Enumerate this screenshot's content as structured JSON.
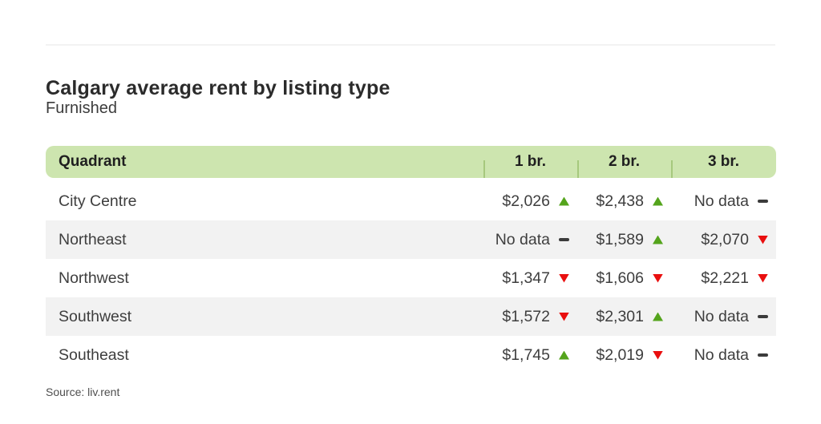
{
  "page": {
    "title": "Calgary average rent by listing type",
    "subtitle": "Furnished",
    "source": "Source: liv.rent"
  },
  "table": {
    "columns": [
      "Quadrant",
      "1 br.",
      "2 br.",
      "3 br."
    ],
    "rows": [
      {
        "label": "City Centre",
        "values": [
          {
            "text": "$2,026",
            "trend": "up"
          },
          {
            "text": "$2,438",
            "trend": "up"
          },
          {
            "text": "No data",
            "trend": "none"
          }
        ]
      },
      {
        "label": "Northeast",
        "values": [
          {
            "text": "No data",
            "trend": "none"
          },
          {
            "text": "$1,589",
            "trend": "up"
          },
          {
            "text": "$2,070",
            "trend": "down"
          }
        ]
      },
      {
        "label": "Northwest",
        "values": [
          {
            "text": "$1,347",
            "trend": "down"
          },
          {
            "text": "$1,606",
            "trend": "down"
          },
          {
            "text": "$2,221",
            "trend": "down"
          }
        ]
      },
      {
        "label": "Southwest",
        "values": [
          {
            "text": "$1,572",
            "trend": "down"
          },
          {
            "text": "$2,301",
            "trend": "up"
          },
          {
            "text": "No data",
            "trend": "none"
          }
        ]
      },
      {
        "label": "Southeast",
        "values": [
          {
            "text": "$1,745",
            "trend": "up"
          },
          {
            "text": "$2,019",
            "trend": "down"
          },
          {
            "text": "No data",
            "trend": "none"
          }
        ]
      }
    ]
  },
  "colors": {
    "header_bg": "#cde5af",
    "header_divider": "#a6c87d",
    "row_alt_bg": "#f2f2f2",
    "up": "#54a41c",
    "down": "#e90f0f",
    "dash": "#3b3b3b"
  },
  "chart_data": {
    "type": "table",
    "title": "Calgary average rent by listing type",
    "subtitle": "Furnished",
    "columns": [
      "Quadrant",
      "1 br.",
      "2 br.",
      "3 br."
    ],
    "rows": [
      {
        "quadrant": "City Centre",
        "br1": 2026,
        "br1_trend": "up",
        "br2": 2438,
        "br2_trend": "up",
        "br3": null,
        "br3_trend": "none"
      },
      {
        "quadrant": "Northeast",
        "br1": null,
        "br1_trend": "none",
        "br2": 1589,
        "br2_trend": "up",
        "br3": 2070,
        "br3_trend": "down"
      },
      {
        "quadrant": "Northwest",
        "br1": 1347,
        "br1_trend": "down",
        "br2": 1606,
        "br2_trend": "down",
        "br3": 2221,
        "br3_trend": "down"
      },
      {
        "quadrant": "Southwest",
        "br1": 1572,
        "br1_trend": "down",
        "br2": 2301,
        "br2_trend": "up",
        "br3": null,
        "br3_trend": "none"
      },
      {
        "quadrant": "Southeast",
        "br1": 1745,
        "br1_trend": "up",
        "br2": 2019,
        "br2_trend": "down",
        "br3": null,
        "br3_trend": "none"
      }
    ],
    "no_data_label": "No data",
    "source": "Source: liv.rent"
  }
}
